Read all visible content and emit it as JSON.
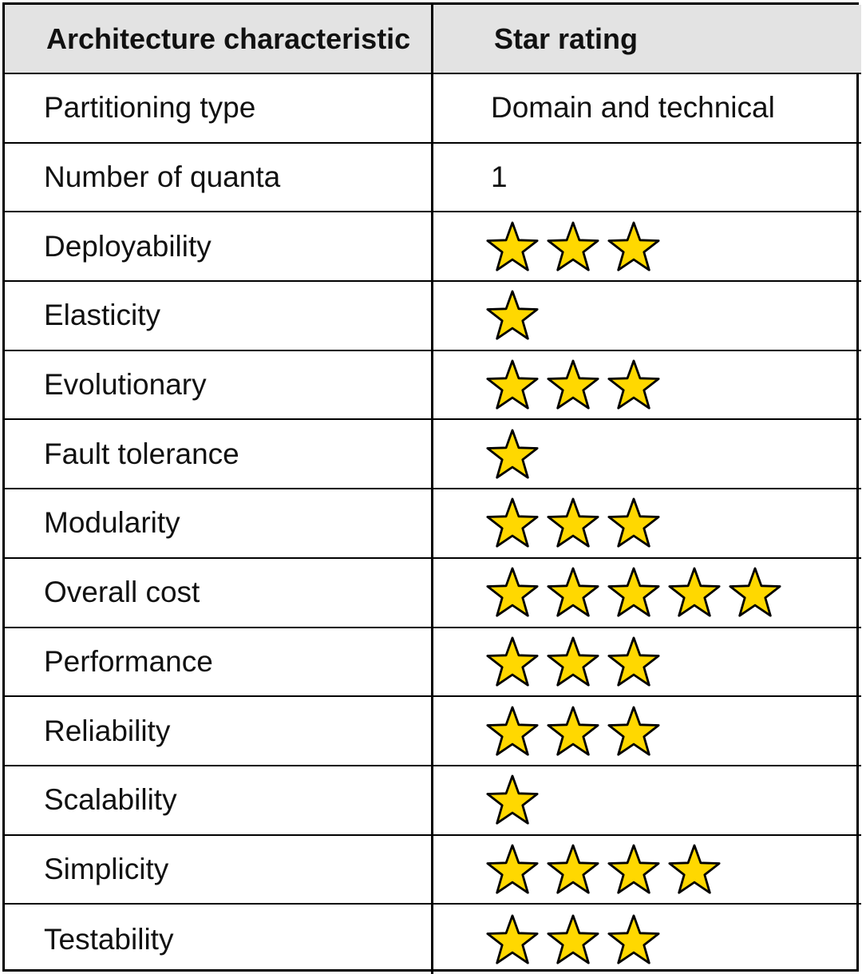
{
  "header": {
    "characteristic": "Architecture characteristic",
    "rating": "Star rating"
  },
  "rows": [
    {
      "name": "Partitioning type",
      "text": "Domain and technical"
    },
    {
      "name": "Number of quanta",
      "text": "1"
    },
    {
      "name": "Deployability",
      "stars": 3
    },
    {
      "name": "Elasticity",
      "stars": 1
    },
    {
      "name": "Evolutionary",
      "stars": 3
    },
    {
      "name": "Fault tolerance",
      "stars": 1
    },
    {
      "name": "Modularity",
      "stars": 3
    },
    {
      "name": "Overall cost",
      "stars": 5
    },
    {
      "name": "Performance",
      "stars": 3
    },
    {
      "name": "Reliability",
      "stars": 3
    },
    {
      "name": "Scalability",
      "stars": 1
    },
    {
      "name": "Simplicity",
      "stars": 4
    },
    {
      "name": "Testability",
      "stars": 3
    }
  ],
  "colors": {
    "star_fill": "#ffd800",
    "star_stroke": "#000000",
    "header_bg": "#e3e3e3"
  },
  "icons": {
    "rating": "star-icon"
  }
}
